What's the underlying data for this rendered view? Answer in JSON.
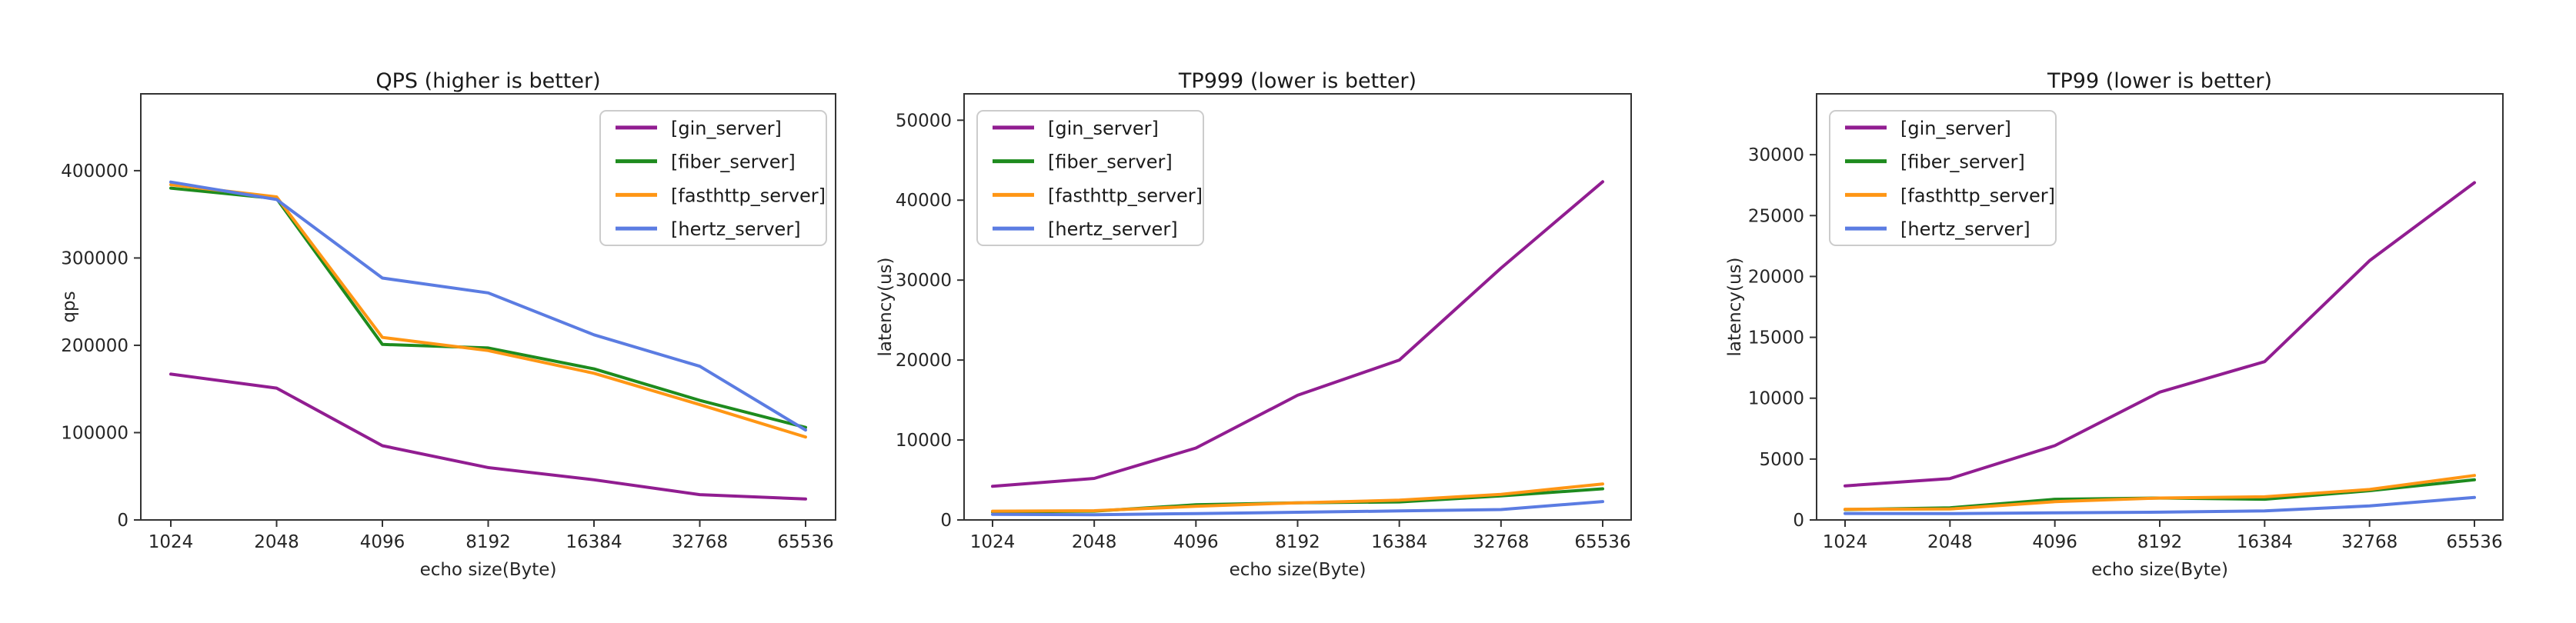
{
  "figure": {
    "background": "#ffffff",
    "text_color": "#262626",
    "spine_color": "#333333"
  },
  "legend": {
    "entries": [
      {
        "label": "[gin_server]",
        "color": "#911d91"
      },
      {
        "label": "[fiber_server]",
        "color": "#1e8b1e"
      },
      {
        "label": "[fasthttp_server]",
        "color": "#ff9614"
      },
      {
        "label": "[hertz_server]",
        "color": "#5b7ce2"
      }
    ]
  },
  "chart_data": [
    {
      "type": "line",
      "title": "QPS (higher is better)",
      "xlabel": "echo size(Byte)",
      "ylabel": "qps",
      "categories": [
        1024,
        2048,
        4096,
        8192,
        16384,
        32768,
        65536
      ],
      "x_tick_labels": [
        "1024",
        "2048",
        "4096",
        "8192",
        "16384",
        "32768",
        "65536"
      ],
      "y_ticks": [
        0,
        100000,
        200000,
        300000,
        400000
      ],
      "ylim": [
        0,
        488000
      ],
      "grid": false,
      "legend_position": "upper-right",
      "series": [
        {
          "name": "[gin_server]",
          "color": "#911d91",
          "values": [
            167000,
            151000,
            85000,
            60000,
            46000,
            29000,
            24000
          ]
        },
        {
          "name": "[fiber_server]",
          "color": "#1e8b1e",
          "values": [
            380000,
            368000,
            201000,
            197000,
            173000,
            137000,
            106000
          ]
        },
        {
          "name": "[fasthttp_server]",
          "color": "#ff9614",
          "values": [
            384000,
            370000,
            209000,
            194000,
            168000,
            132000,
            95000
          ]
        },
        {
          "name": "[hertz_server]",
          "color": "#5b7ce2",
          "values": [
            387000,
            367000,
            277000,
            260000,
            212000,
            176000,
            103000
          ]
        }
      ]
    },
    {
      "type": "line",
      "title": "TP999 (lower is better)",
      "xlabel": "echo size(Byte)",
      "ylabel": "latency(us)",
      "categories": [
        1024,
        2048,
        4096,
        8192,
        16384,
        32768,
        65536
      ],
      "x_tick_labels": [
        "1024",
        "2048",
        "4096",
        "8192",
        "16384",
        "32768",
        "65536"
      ],
      "y_ticks": [
        0,
        10000,
        20000,
        30000,
        40000,
        50000
      ],
      "ylim": [
        0,
        53300
      ],
      "grid": false,
      "legend_position": "upper-left",
      "series": [
        {
          "name": "[gin_server]",
          "color": "#911d91",
          "values": [
            4200,
            5200,
            9000,
            15600,
            20000,
            31500,
            42300
          ]
        },
        {
          "name": "[fiber_server]",
          "color": "#1e8b1e",
          "values": [
            1000,
            1100,
            1900,
            2150,
            2250,
            3000,
            3900
          ]
        },
        {
          "name": "[fasthttp_server]",
          "color": "#ff9614",
          "values": [
            1100,
            1150,
            1700,
            2150,
            2470,
            3200,
            4500
          ]
        },
        {
          "name": "[hertz_server]",
          "color": "#5b7ce2",
          "values": [
            700,
            650,
            800,
            960,
            1125,
            1300,
            2300
          ]
        }
      ]
    },
    {
      "type": "line",
      "title": "TP99 (lower is better)",
      "xlabel": "echo size(Byte)",
      "ylabel": "latency(us)",
      "categories": [
        1024,
        2048,
        4096,
        8192,
        16384,
        32768,
        65536
      ],
      "x_tick_labels": [
        "1024",
        "2048",
        "4096",
        "8192",
        "16384",
        "32768",
        "65536"
      ],
      "y_ticks": [
        0,
        5000,
        10000,
        15000,
        20000,
        25000,
        30000
      ],
      "ylim": [
        0,
        35000
      ],
      "grid": false,
      "legend_position": "upper-left",
      "series": [
        {
          "name": "[gin_server]",
          "color": "#911d91",
          "values": [
            2800,
            3400,
            6100,
            10500,
            13000,
            21300,
            27700
          ]
        },
        {
          "name": "[fiber_server]",
          "color": "#1e8b1e",
          "values": [
            850,
            1000,
            1700,
            1800,
            1700,
            2400,
            3300
          ]
        },
        {
          "name": "[fasthttp_server]",
          "color": "#ff9614",
          "values": [
            880,
            900,
            1500,
            1800,
            1900,
            2500,
            3650
          ]
        },
        {
          "name": "[hertz_server]",
          "color": "#5b7ce2",
          "values": [
            530,
            520,
            590,
            640,
            740,
            1150,
            1850
          ]
        }
      ]
    }
  ]
}
